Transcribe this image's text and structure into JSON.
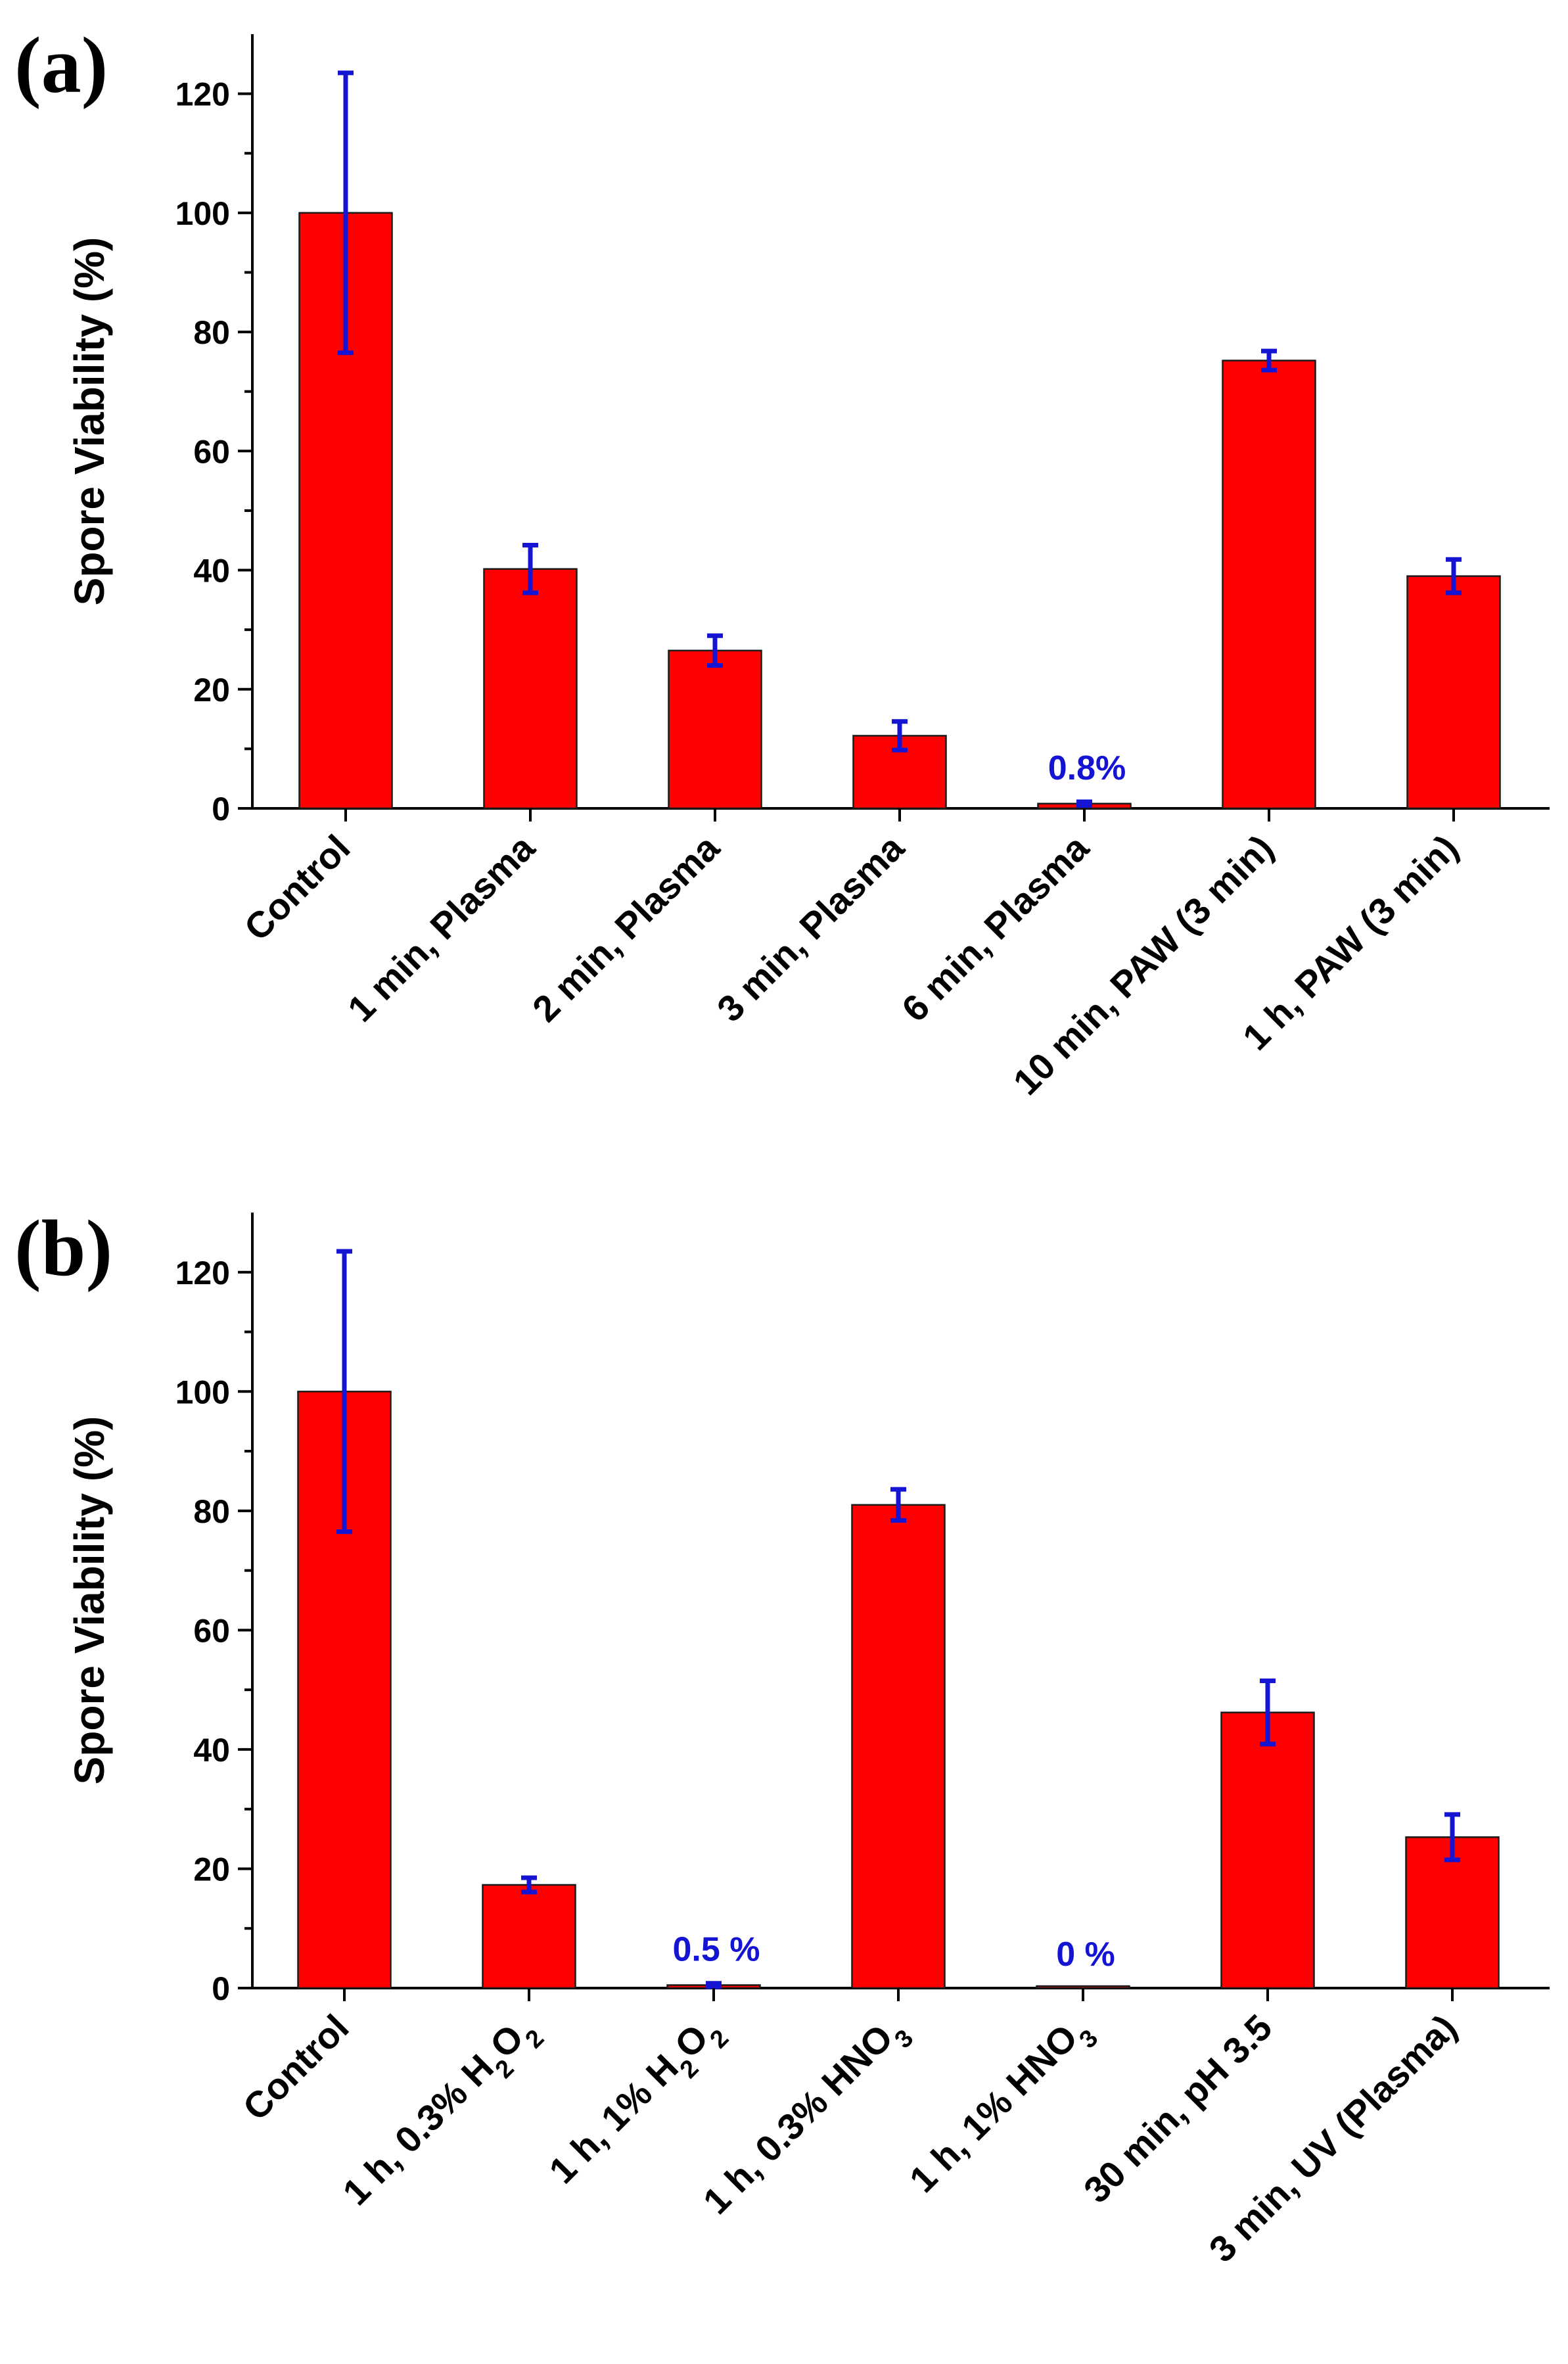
{
  "chart_data": [
    {
      "type": "bar",
      "panel": "(a)",
      "ylabel": "Spore Viability (%)",
      "xlabel": "",
      "ylim": [
        0,
        130
      ],
      "yticks": [
        0,
        20,
        40,
        60,
        80,
        100,
        120
      ],
      "ytick_labels": [
        "0",
        "20",
        "40",
        "60",
        "80",
        "100",
        "120"
      ],
      "categories": [
        {
          "parts": [
            {
              "t": "Control"
            }
          ]
        },
        {
          "parts": [
            {
              "t": "1 min, Plasma"
            }
          ]
        },
        {
          "parts": [
            {
              "t": "2 min, Plasma"
            }
          ]
        },
        {
          "parts": [
            {
              "t": "3 min, Plasma"
            }
          ]
        },
        {
          "parts": [
            {
              "t": "6 min, Plasma"
            }
          ]
        },
        {
          "parts": [
            {
              "t": "10 min, PAW (3 min)"
            }
          ]
        },
        {
          "parts": [
            {
              "t": "1 h, PAW (3 min)"
            }
          ]
        }
      ],
      "values": [
        100,
        40.2,
        26.5,
        12.2,
        0.8,
        75.2,
        39.0
      ],
      "errors": [
        23.5,
        4.0,
        2.5,
        2.4,
        0.3,
        1.6,
        2.8
      ],
      "annotations": [
        {
          "index": 4,
          "text": "0.8%"
        }
      ],
      "bar_color": "#ff0000",
      "error_color": "#1414d2"
    },
    {
      "type": "bar",
      "panel": "(b)",
      "ylabel": "Spore Viability (%)",
      "xlabel": "",
      "ylim": [
        0,
        130
      ],
      "yticks": [
        0,
        20,
        40,
        60,
        80,
        100,
        120
      ],
      "ytick_labels": [
        "0",
        "20",
        "40",
        "60",
        "80",
        "100",
        "120"
      ],
      "categories": [
        {
          "parts": [
            {
              "t": "Control"
            }
          ]
        },
        {
          "parts": [
            {
              "t": "1 h, 0.3% H"
            },
            {
              "t": "2",
              "sub": true
            },
            {
              "t": "O"
            },
            {
              "t": "2",
              "sub": true
            }
          ]
        },
        {
          "parts": [
            {
              "t": "1 h, 1% H"
            },
            {
              "t": "2",
              "sub": true
            },
            {
              "t": "O"
            },
            {
              "t": "2",
              "sub": true
            }
          ]
        },
        {
          "parts": [
            {
              "t": "1 h, 0.3% HNO"
            },
            {
              "t": "3",
              "sub": true
            }
          ]
        },
        {
          "parts": [
            {
              "t": "1 h, 1% HNO"
            },
            {
              "t": "3",
              "sub": true
            }
          ]
        },
        {
          "parts": [
            {
              "t": "30 min, pH 3.5"
            }
          ]
        },
        {
          "parts": [
            {
              "t": "3 min, UV (Plasma)"
            }
          ]
        }
      ],
      "values": [
        100,
        17.3,
        0.5,
        81.0,
        0.0,
        46.2,
        25.3
      ],
      "errors": [
        23.5,
        1.2,
        0.3,
        2.6,
        0.0,
        5.3,
        3.8
      ],
      "annotations": [
        {
          "index": 2,
          "text": "0.5 %"
        },
        {
          "index": 4,
          "text": "0 %"
        }
      ],
      "bar_color": "#ff0000",
      "error_color": "#1414d2"
    }
  ]
}
